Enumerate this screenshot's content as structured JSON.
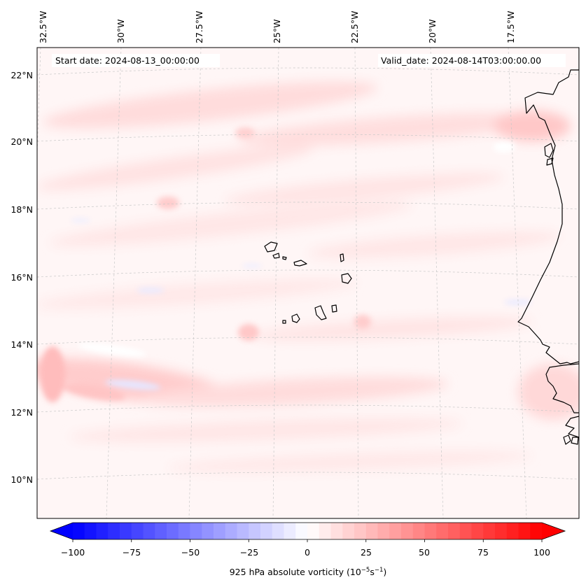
{
  "map": {
    "start_label": "Start date: 2024-08-13_00:00:00",
    "valid_label": "Valid_date: 2024-08-14T03:00:00.00",
    "lon_labels": [
      "32.5°W",
      "30°W",
      "27.5°W",
      "25°W",
      "22.5°W",
      "20°W",
      "17.5°W"
    ],
    "lat_labels": [
      "22°N",
      "20°N",
      "18°N",
      "16°N",
      "14°N",
      "12°N",
      "10°N"
    ]
  },
  "colorbar": {
    "label": "925 hPa absolute vorticity (10",
    "label_exp1": "−5",
    "label_mid": "s",
    "label_exp2": "−1",
    "label_end": ")",
    "ticks": [
      "−100",
      "−75",
      "−50",
      "−25",
      "0",
      "25",
      "50",
      "75",
      "100"
    ],
    "min": -100,
    "max": 100,
    "step": 5
  },
  "colors": {
    "negative_max": "#0000ff",
    "positive_max": "#ff0000",
    "zero": "#ffffff",
    "coastline": "#000000",
    "grid": "#c8c8c8"
  }
}
